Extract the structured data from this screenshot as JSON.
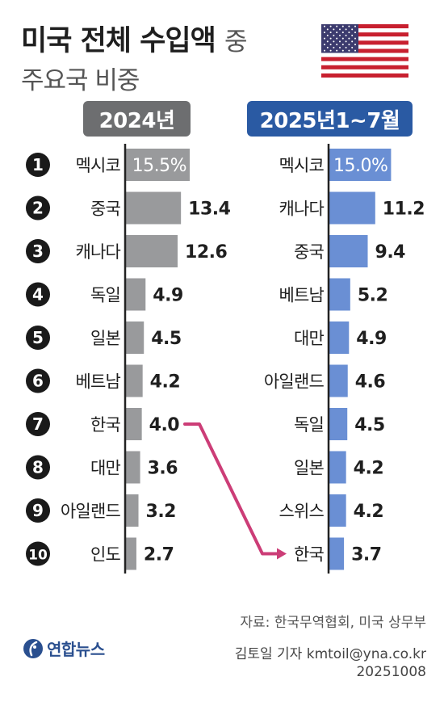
{
  "header": {
    "title_bold": "미국 전체 수입액",
    "title_light": "중",
    "subtitle": "주요국 비중"
  },
  "columns": {
    "left_label": "2024년",
    "right_label": "2025년1~7월"
  },
  "colors": {
    "left_bar": "#999a9c",
    "right_bar": "#6a8fd4",
    "rank_circle": "#1a1a1a",
    "arrow": "#cc3d77",
    "axis": "#222222"
  },
  "chart_data": [
    {
      "type": "bar",
      "orientation": "horizontal",
      "title": "2024년",
      "categories": [
        "멕시코",
        "중국",
        "캐나다",
        "독일",
        "일본",
        "베트남",
        "한국",
        "대만",
        "아일랜드",
        "인도"
      ],
      "values": [
        15.5,
        13.4,
        12.6,
        4.9,
        4.5,
        4.2,
        4.0,
        3.6,
        3.2,
        2.7
      ],
      "labels": [
        "15.5%",
        "13.4",
        "12.6",
        "4.9",
        "4.5",
        "4.2",
        "4.0",
        "3.6",
        "3.2",
        "2.7"
      ]
    },
    {
      "type": "bar",
      "orientation": "horizontal",
      "title": "2025년1~7월",
      "categories": [
        "멕시코",
        "캐나다",
        "중국",
        "베트남",
        "대만",
        "아일랜드",
        "독일",
        "일본",
        "스위스",
        "한국"
      ],
      "values": [
        15.0,
        11.2,
        9.4,
        5.2,
        4.9,
        4.6,
        4.5,
        4.2,
        4.2,
        3.7
      ],
      "labels": [
        "15.0%",
        "11.2",
        "9.4",
        "5.2",
        "4.9",
        "4.6",
        "4.5",
        "4.2",
        "4.2",
        "3.7"
      ]
    }
  ],
  "ranks": [
    "1",
    "2",
    "3",
    "4",
    "5",
    "6",
    "7",
    "8",
    "9",
    "10"
  ],
  "footer": {
    "source": "자료: 한국무역협회, 미국 상무부",
    "logo_text": "연합뉴스",
    "credit": "김토일 기자 kmtoil@yna.co.kr",
    "date": "20251008"
  }
}
